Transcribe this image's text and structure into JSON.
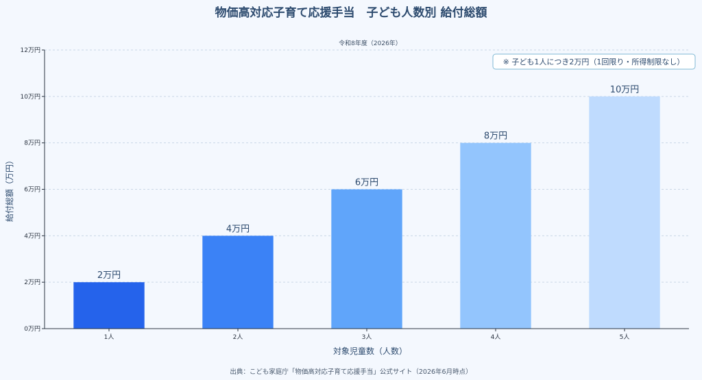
{
  "chart_data": {
    "type": "bar",
    "title": "物価高対応子育て応援手当　子ども人数別 給付総額",
    "subtitle": "令和8年度（2026年）",
    "xlabel": "対象児童数（人数）",
    "ylabel": "給付総額（万円）",
    "categories": [
      "1人",
      "2人",
      "3人",
      "4人",
      "5人"
    ],
    "values": [
      2,
      4,
      6,
      8,
      10
    ],
    "data_labels": [
      "2万円",
      "4万円",
      "6万円",
      "8万円",
      "10万円"
    ],
    "ylim": [
      0,
      12
    ],
    "yticks": [
      0,
      2,
      4,
      6,
      8,
      10,
      12
    ],
    "ytick_labels": [
      "0万円",
      "2万円",
      "4万円",
      "6万円",
      "8万円",
      "10万円",
      "12万円"
    ],
    "grid": true,
    "bar_colors": [
      "#2563eb",
      "#3b82f6",
      "#60a5fa",
      "#93c5fd",
      "#bfdbfe"
    ],
    "annotation": "※ 子ども1人につき2万円（1回限り・所得制限なし）",
    "source": "出典：こども家庭庁「物価高対応子育て応援手当」公式サイト（2026年6月時点）"
  }
}
